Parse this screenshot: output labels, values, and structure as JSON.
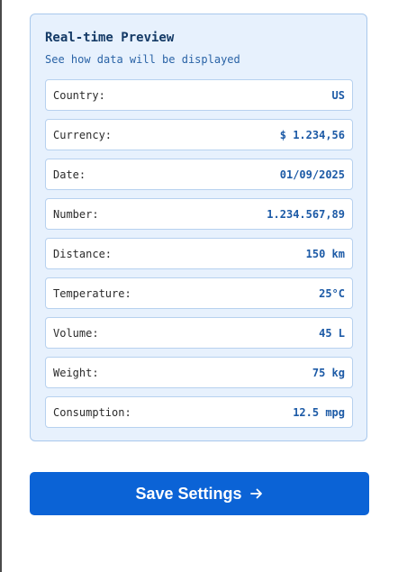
{
  "preview": {
    "title": "Real-time Preview",
    "subtitle": "See how data will be displayed",
    "rows": [
      {
        "label": "Country:",
        "value": "US"
      },
      {
        "label": "Currency:",
        "value": "$ 1.234,56"
      },
      {
        "label": "Date:",
        "value": "01/09/2025"
      },
      {
        "label": "Number:",
        "value": "1.234.567,89"
      },
      {
        "label": "Distance:",
        "value": "150 km"
      },
      {
        "label": "Temperature:",
        "value": "25°C"
      },
      {
        "label": "Volume:",
        "value": "45 L"
      },
      {
        "label": "Weight:",
        "value": "75 kg"
      },
      {
        "label": "Consumption:",
        "value": "12.5 mpg"
      }
    ]
  },
  "actions": {
    "save_label": "Save Settings",
    "save_icon": "arrow-right-icon"
  },
  "colors": {
    "card_background": "#e7f1fd",
    "card_border": "#a9c8ec",
    "value_text": "#1c5aa6",
    "primary_button": "#0b63d6"
  }
}
